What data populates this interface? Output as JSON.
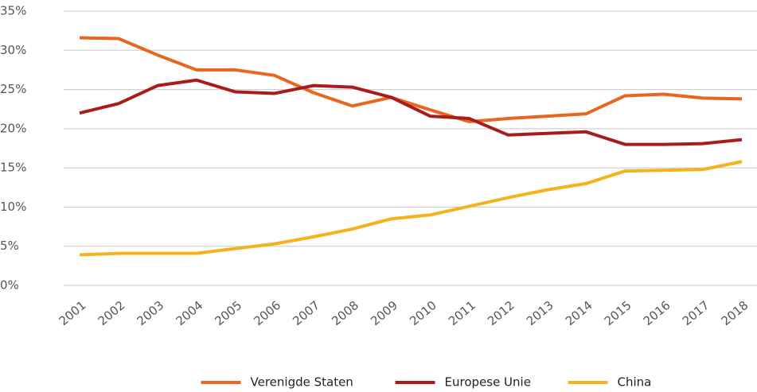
{
  "chart_data": {
    "type": "line",
    "categories": [
      "2001",
      "2002",
      "2003",
      "2004",
      "2005",
      "2006",
      "2007",
      "2008",
      "2009",
      "2010",
      "2011",
      "2012",
      "2013",
      "2014",
      "2015",
      "2016",
      "2017",
      "2018"
    ],
    "series": [
      {
        "name": "Verenigde Staten",
        "color": "#e8661f",
        "values": [
          31.6,
          31.5,
          29.4,
          27.5,
          27.5,
          26.8,
          24.6,
          22.9,
          24.0,
          22.4,
          20.9,
          21.3,
          21.6,
          21.9,
          24.2,
          24.4,
          23.9,
          23.8
        ]
      },
      {
        "name": "Europese Unie",
        "color": "#a81c1c",
        "values": [
          22.0,
          23.2,
          25.5,
          26.2,
          24.7,
          24.5,
          25.5,
          25.3,
          24.0,
          21.6,
          21.3,
          19.2,
          19.4,
          19.6,
          18.0,
          18.0,
          18.1,
          18.6
        ]
      },
      {
        "name": "China",
        "color": "#f5b21a",
        "values": [
          3.9,
          4.1,
          4.1,
          4.1,
          4.7,
          5.3,
          6.2,
          7.2,
          8.5,
          9.0,
          10.1,
          11.2,
          12.2,
          13.0,
          14.6,
          14.7,
          14.8,
          15.8
        ]
      }
    ],
    "ylim": [
      0,
      35
    ],
    "yticks": [
      {
        "value": 0,
        "label": "0%"
      },
      {
        "value": 5,
        "label": "5%"
      },
      {
        "value": 10,
        "label": "10%"
      },
      {
        "value": 15,
        "label": "15%"
      },
      {
        "value": 20,
        "label": "20%"
      },
      {
        "value": 25,
        "label": "25%"
      },
      {
        "value": 30,
        "label": "30%"
      },
      {
        "value": 35,
        "label": "35%"
      }
    ],
    "grid": true,
    "legend": "bottom"
  }
}
